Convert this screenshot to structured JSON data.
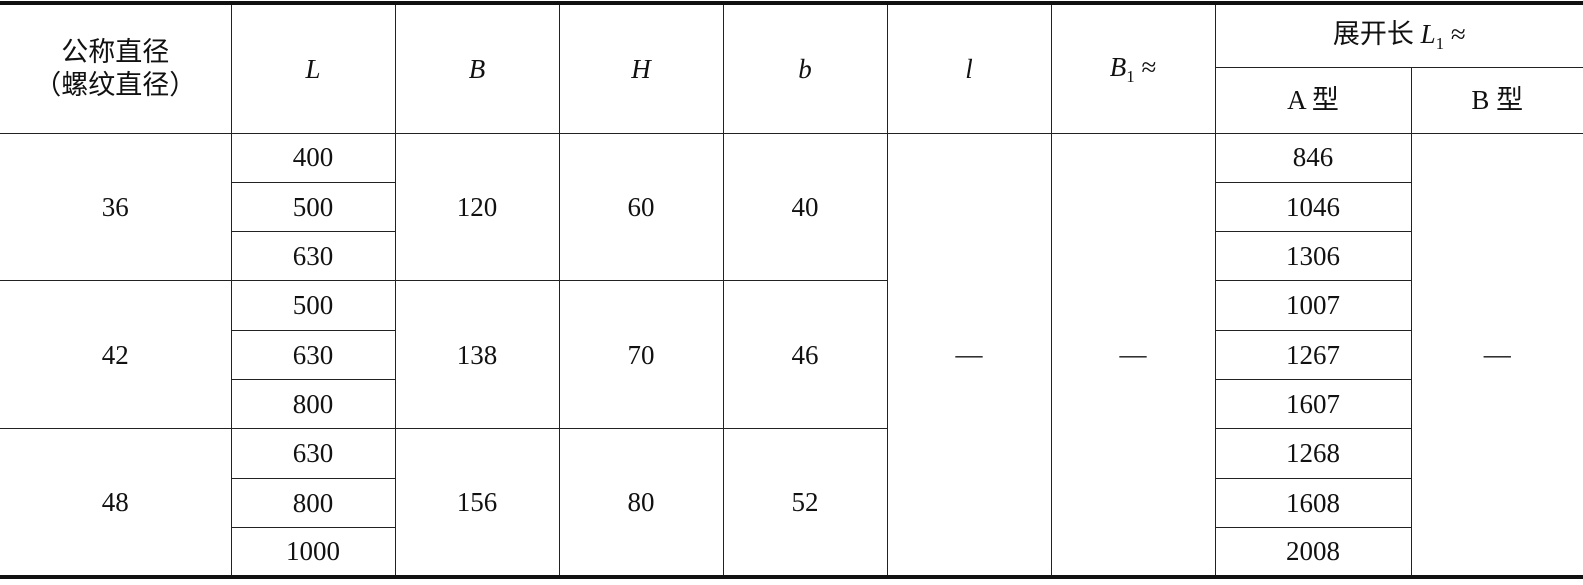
{
  "header": {
    "nominal_line1": "公称直径",
    "nominal_line2": "（螺纹直径）",
    "L": "L",
    "B": "B",
    "H": "H",
    "b": "b",
    "l": "l",
    "B1_main": "B",
    "B1_sub": "1",
    "B1_suffix": " ≈",
    "L1_prefix": "展开长 ",
    "L1_main": "L",
    "L1_sub": "1",
    "L1_suffix": " ≈",
    "type_a": "A 型",
    "type_b": "B 型"
  },
  "groups": [
    {
      "d": "36",
      "L": [
        "400",
        "500",
        "630"
      ],
      "B": "120",
      "H": "60",
      "b": "40",
      "A": [
        "846",
        "1046",
        "1306"
      ]
    },
    {
      "d": "42",
      "L": [
        "500",
        "630",
        "800"
      ],
      "B": "138",
      "H": "70",
      "b": "46",
      "A": [
        "1007",
        "1267",
        "1607"
      ]
    },
    {
      "d": "48",
      "L": [
        "630",
        "800",
        "1000"
      ],
      "B": "156",
      "H": "80",
      "b": "52",
      "A": [
        "1268",
        "1608",
        "2008"
      ]
    }
  ],
  "merged": {
    "l": "—",
    "B1": "—",
    "type_b": "—"
  }
}
